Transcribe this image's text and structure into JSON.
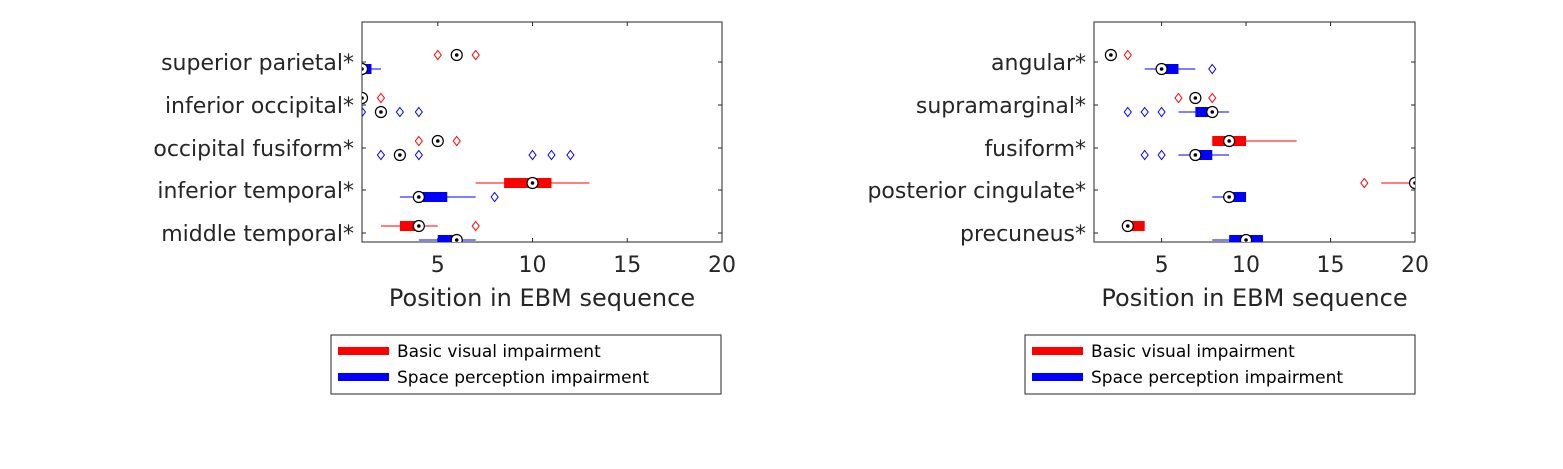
{
  "chart_data": [
    {
      "type": "boxplot",
      "xlabel": "Position in EBM sequence",
      "xlim": [
        1,
        20
      ],
      "xticks": [
        5,
        10,
        15,
        20
      ],
      "grid": false,
      "legend": {
        "placement": "below",
        "entries": [
          {
            "label": "Basic visual impairment",
            "color": "#ff0000"
          },
          {
            "label": "Space perception impairment",
            "color": "#0000ff"
          }
        ]
      },
      "categories": [
        "superior parietal*",
        "inferior occipital*",
        "occipital fusiform*",
        "inferior temporal*",
        "middle temporal*"
      ],
      "series": [
        {
          "name": "Basic visual impairment",
          "color": "#ff0000",
          "boxes": [
            {
              "median": 6,
              "q1": 6,
              "q3": 6,
              "whisker_low": 6,
              "whisker_high": 6,
              "outliers": [
                5,
                7
              ]
            },
            {
              "median": 1,
              "q1": 1,
              "q3": 1,
              "whisker_low": 1,
              "whisker_high": 1,
              "outliers": [
                2
              ]
            },
            {
              "median": 5,
              "q1": 5,
              "q3": 5,
              "whisker_low": 5,
              "whisker_high": 5,
              "outliers": [
                4,
                6
              ]
            },
            {
              "median": 10,
              "q1": 8.5,
              "q3": 11,
              "whisker_low": 7,
              "whisker_high": 13,
              "outliers": []
            },
            {
              "median": 4,
              "q1": 3,
              "q3": 4,
              "whisker_low": 2,
              "whisker_high": 5,
              "outliers": [
                7
              ]
            }
          ]
        },
        {
          "name": "Space perception impairment",
          "color": "#0000ff",
          "boxes": [
            {
              "median": 1,
              "q1": 1,
              "q3": 1.5,
              "whisker_low": 1,
              "whisker_high": 2,
              "outliers": []
            },
            {
              "median": 2,
              "q1": 2,
              "q3": 2,
              "whisker_low": 2,
              "whisker_high": 2,
              "outliers": [
                1,
                3,
                4
              ]
            },
            {
              "median": 3,
              "q1": 3,
              "q3": 3,
              "whisker_low": 3,
              "whisker_high": 3,
              "outliers": [
                2,
                4,
                10,
                11,
                12
              ]
            },
            {
              "median": 4,
              "q1": 4,
              "q3": 5.5,
              "whisker_low": 3,
              "whisker_high": 7,
              "outliers": [
                8
              ]
            },
            {
              "median": 6,
              "q1": 5,
              "q3": 6,
              "whisker_low": 4,
              "whisker_high": 7,
              "outliers": []
            }
          ]
        }
      ]
    },
    {
      "type": "boxplot",
      "xlabel": "Position in EBM sequence",
      "xlim": [
        1,
        20
      ],
      "xticks": [
        5,
        10,
        15,
        20
      ],
      "grid": false,
      "legend": {
        "placement": "below",
        "entries": [
          {
            "label": "Basic visual impairment",
            "color": "#ff0000"
          },
          {
            "label": "Space perception impairment",
            "color": "#0000ff"
          }
        ]
      },
      "categories": [
        "angular*",
        "supramarginal*",
        "fusiform*",
        "posterior cingulate*",
        "precuneus*"
      ],
      "series": [
        {
          "name": "Basic visual impairment",
          "color": "#ff0000",
          "boxes": [
            {
              "median": 2,
              "q1": 2,
              "q3": 2,
              "whisker_low": 2,
              "whisker_high": 2,
              "outliers": [
                3
              ]
            },
            {
              "median": 7,
              "q1": 7,
              "q3": 7,
              "whisker_low": 7,
              "whisker_high": 7,
              "outliers": [
                6,
                8
              ]
            },
            {
              "median": 9,
              "q1": 8,
              "q3": 10,
              "whisker_low": 8,
              "whisker_high": 13,
              "outliers": []
            },
            {
              "median": 20,
              "q1": 20,
              "q3": 20,
              "whisker_low": 18,
              "whisker_high": 20,
              "outliers": [
                17
              ]
            },
            {
              "median": 3,
              "q1": 3,
              "q3": 4,
              "whisker_low": 3,
              "whisker_high": 4,
              "outliers": []
            }
          ]
        },
        {
          "name": "Space perception impairment",
          "color": "#0000ff",
          "boxes": [
            {
              "median": 5,
              "q1": 5,
              "q3": 6,
              "whisker_low": 4,
              "whisker_high": 7,
              "outliers": [
                8
              ]
            },
            {
              "median": 8,
              "q1": 7,
              "q3": 8,
              "whisker_low": 6,
              "whisker_high": 9,
              "outliers": [
                3,
                4,
                5
              ]
            },
            {
              "median": 7,
              "q1": 7,
              "q3": 8,
              "whisker_low": 6,
              "whisker_high": 9,
              "outliers": [
                4,
                5
              ]
            },
            {
              "median": 9,
              "q1": 9,
              "q3": 10,
              "whisker_low": 8,
              "whisker_high": 10,
              "outliers": []
            },
            {
              "median": 10,
              "q1": 9,
              "q3": 11,
              "whisker_low": 8,
              "whisker_high": 11,
              "outliers": []
            }
          ]
        }
      ]
    }
  ]
}
